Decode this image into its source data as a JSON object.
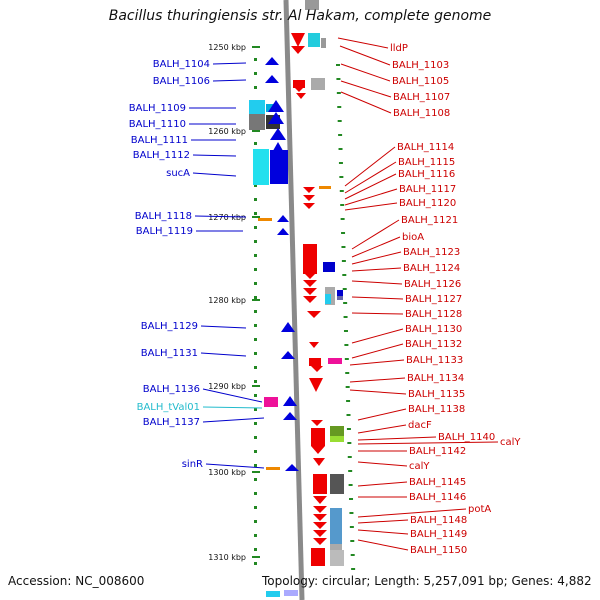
{
  "title": "Bacillus thuringiensis str. Al Hakam, complete genome",
  "footer": {
    "accession": "Accession: NC_008600",
    "summary": "Topology: circular; Length: 5,257,091 bp; Genes: 4,882"
  },
  "colors": {
    "backbone": "#8a8a8a",
    "left_label": "#0000cc",
    "right_label": "#cc0000",
    "trna_label": "#22bbcc",
    "tick": "#228822"
  },
  "ticks": [
    "1250 kbp",
    "1260 kbp",
    "1270 kbp",
    "1280 kbp",
    "1290 kbp",
    "1300 kbp",
    "1310 kbp"
  ],
  "left_labels": [
    "BALH_1104",
    "BALH_1106",
    "BALH_1109",
    "BALH_1110",
    "BALH_1111",
    "BALH_1112",
    "sucA",
    "BALH_1118",
    "BALH_1119",
    "BALH_1129",
    "BALH_1131",
    "BALH_1136",
    "BALH_tVal01",
    "BALH_1137",
    "sinR"
  ],
  "right_labels": [
    "lldP",
    "BALH_1103",
    "BALH_1105",
    "BALH_1107",
    "BALH_1108",
    "BALH_1114",
    "BALH_1115",
    "BALH_1116",
    "BALH_1117",
    "BALH_1120",
    "BALH_1121",
    "bioA",
    "BALH_1123",
    "BALH_1124",
    "BALH_1126",
    "BALH_1127",
    "BALH_1128",
    "BALH_1130",
    "BALH_1132",
    "BALH_1133",
    "BALH_1134",
    "BALH_1135",
    "BALH_1138",
    "dacF",
    "BALH_1140",
    "calY",
    "BALH_1142",
    "calY",
    "BALH_1145",
    "BALH_1146",
    "potA",
    "BALH_1148",
    "BALH_1149",
    "BALH_1150"
  ]
}
